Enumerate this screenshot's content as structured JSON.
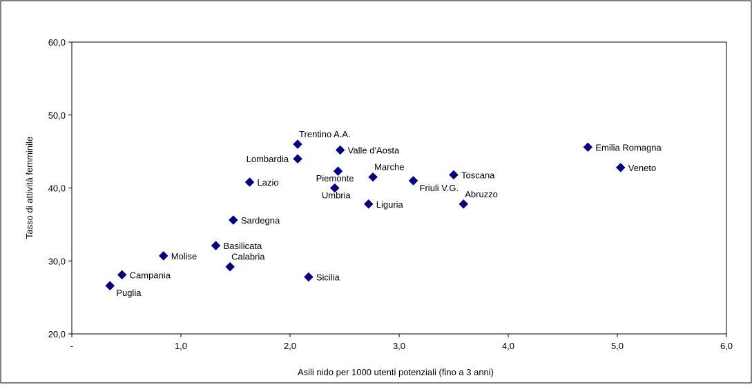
{
  "chart_data": {
    "type": "scatter",
    "title": "",
    "xlabel": "Asili nido per 1000 utenti potenziali (fino a 3 anni)",
    "ylabel": "Tasso di attività femminile",
    "xlim": [
      0,
      6
    ],
    "ylim": [
      20,
      60
    ],
    "x_ticks": [
      {
        "value": 0,
        "label": "-"
      },
      {
        "value": 1,
        "label": "1,0"
      },
      {
        "value": 2,
        "label": "2,0"
      },
      {
        "value": 3,
        "label": "3,0"
      },
      {
        "value": 4,
        "label": "4,0"
      },
      {
        "value": 5,
        "label": "5,0"
      },
      {
        "value": 6,
        "label": "6,0"
      }
    ],
    "y_ticks": [
      {
        "value": 20,
        "label": "20,0"
      },
      {
        "value": 30,
        "label": "30,0"
      },
      {
        "value": 40,
        "label": "40,0"
      },
      {
        "value": 50,
        "label": "50,0"
      },
      {
        "value": 60,
        "label": "60,0"
      }
    ],
    "grid": false,
    "legend": "none",
    "marker": "diamond",
    "colors": {
      "marker": "#000080",
      "frame": "#000000"
    },
    "points": [
      {
        "label": "Puglia",
        "x": 0.35,
        "y": 26.6,
        "label_pos": "below-right"
      },
      {
        "label": "Campania",
        "x": 0.46,
        "y": 28.1,
        "label_pos": "right"
      },
      {
        "label": "Molise",
        "x": 0.84,
        "y": 30.7,
        "label_pos": "right"
      },
      {
        "label": "Basilicata",
        "x": 1.32,
        "y": 32.1,
        "label_pos": "right"
      },
      {
        "label": "Calabria",
        "x": 1.45,
        "y": 29.2,
        "label_pos": "above-right"
      },
      {
        "label": "Sardegna",
        "x": 1.48,
        "y": 35.6,
        "label_pos": "right"
      },
      {
        "label": "Lazio",
        "x": 1.63,
        "y": 40.8,
        "label_pos": "right"
      },
      {
        "label": "Lombardia",
        "x": 2.07,
        "y": 44.0,
        "label_pos": "left"
      },
      {
        "label": "Trentino A.A.",
        "x": 2.07,
        "y": 46.0,
        "label_pos": "above-right"
      },
      {
        "label": "Sicilia",
        "x": 2.17,
        "y": 27.8,
        "label_pos": "right"
      },
      {
        "label": "Umbria",
        "x": 2.41,
        "y": 40.0,
        "label_pos": "below-left"
      },
      {
        "label": "Piemonte",
        "x": 2.44,
        "y": 42.3,
        "label_pos": "below-left"
      },
      {
        "label": "Valle d'Aosta",
        "x": 2.46,
        "y": 45.2,
        "label_pos": "right"
      },
      {
        "label": "Liguria",
        "x": 2.72,
        "y": 37.8,
        "label_pos": "right"
      },
      {
        "label": "Marche",
        "x": 2.76,
        "y": 41.5,
        "label_pos": "above-right"
      },
      {
        "label": "Friuli V.G.",
        "x": 3.13,
        "y": 41.0,
        "label_pos": "below-right"
      },
      {
        "label": "Toscana",
        "x": 3.5,
        "y": 41.8,
        "label_pos": "right"
      },
      {
        "label": "Abruzzo",
        "x": 3.59,
        "y": 37.8,
        "label_pos": "above-right"
      },
      {
        "label": "Emilia Romagna",
        "x": 4.73,
        "y": 45.6,
        "label_pos": "right"
      },
      {
        "label": "Veneto",
        "x": 5.03,
        "y": 42.8,
        "label_pos": "right"
      }
    ]
  }
}
